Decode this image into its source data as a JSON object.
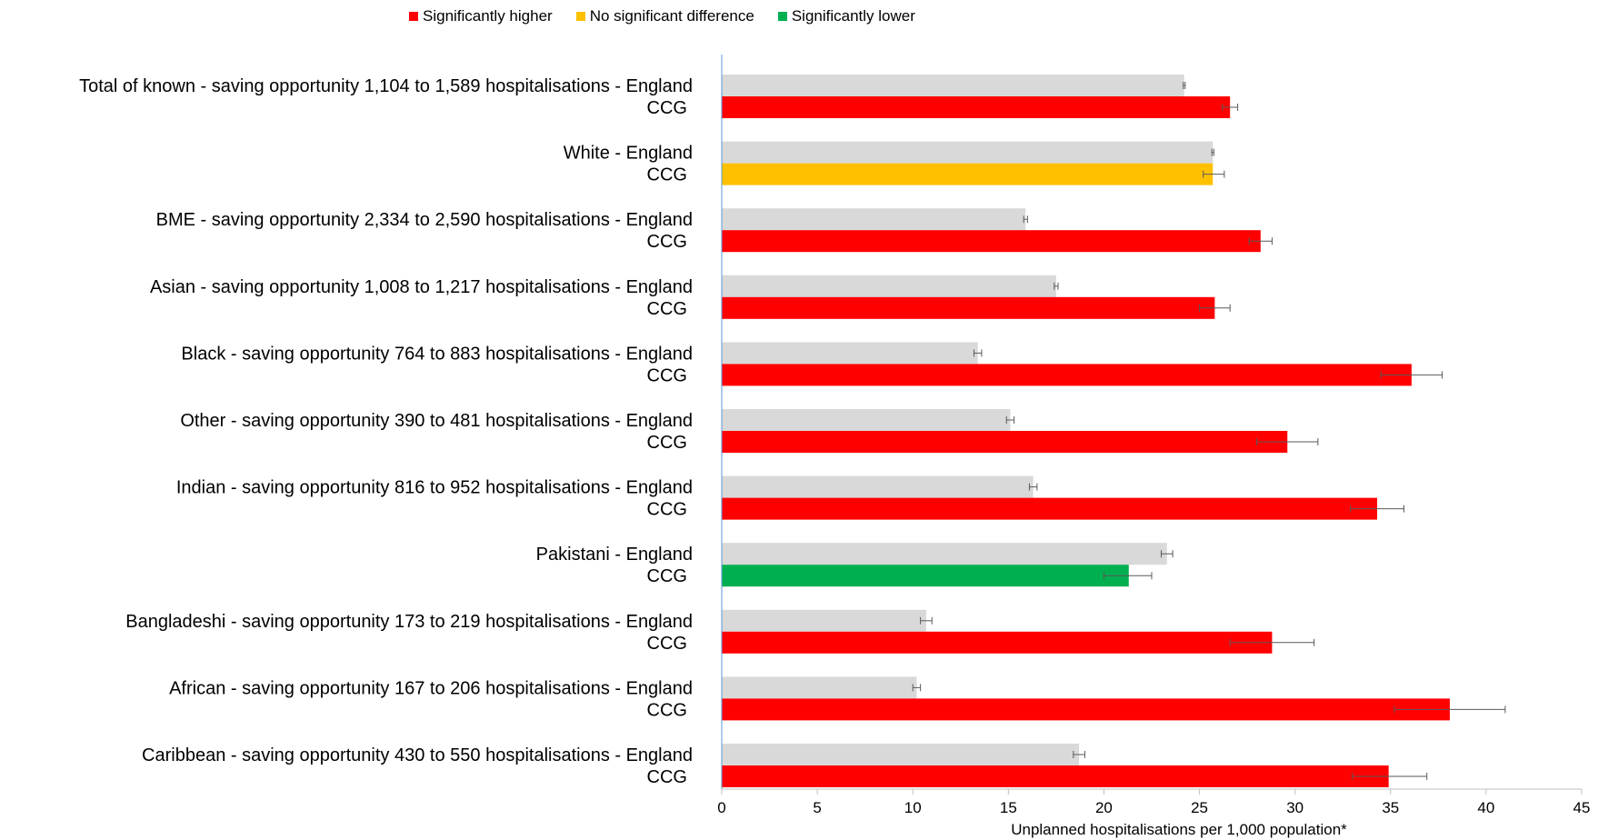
{
  "chart_data": {
    "type": "bar",
    "orientation": "horizontal",
    "xlabel": "Unplanned hospitalisations per 1,000 population*",
    "xlim": [
      0,
      45
    ],
    "xticks": [
      0,
      5,
      10,
      15,
      20,
      25,
      30,
      35,
      40,
      45
    ],
    "grid": false,
    "legend_position": "top",
    "legend": [
      {
        "label": "Significantly higher",
        "color": "#ff0000"
      },
      {
        "label": "No significant difference",
        "color": "#ffc000"
      },
      {
        "label": "Significantly lower",
        "color": "#00b050"
      }
    ],
    "england_color": "#d9d9d9",
    "groups": [
      {
        "label": "Total of known - saving opportunity 1,104 to 1,589 hospitalisations - England",
        "ccg_label": "CCG",
        "england": 24.2,
        "england_ci": [
          24.15,
          24.25
        ],
        "ccg": 26.6,
        "ccg_ci": [
          26.2,
          27.0
        ],
        "ccg_status": "Significantly higher"
      },
      {
        "label": "White - England",
        "ccg_label": "CCG",
        "england": 25.7,
        "england_ci": [
          25.65,
          25.75
        ],
        "ccg": 25.7,
        "ccg_ci": [
          25.2,
          26.3
        ],
        "ccg_status": "No significant difference"
      },
      {
        "label": "BME - saving opportunity 2,334 to 2,590 hospitalisations - England",
        "ccg_label": "CCG",
        "england": 15.9,
        "england_ci": [
          15.8,
          16.0
        ],
        "ccg": 28.2,
        "ccg_ci": [
          27.6,
          28.8
        ],
        "ccg_status": "Significantly higher"
      },
      {
        "label": "Asian - saving opportunity 1,008 to 1,217 hospitalisations - England",
        "ccg_label": "CCG",
        "england": 17.5,
        "england_ci": [
          17.4,
          17.6
        ],
        "ccg": 25.8,
        "ccg_ci": [
          25.0,
          26.6
        ],
        "ccg_status": "Significantly higher"
      },
      {
        "label": "Black - saving opportunity 764 to 883 hospitalisations - England",
        "ccg_label": "CCG",
        "england": 13.4,
        "england_ci": [
          13.2,
          13.6
        ],
        "ccg": 36.1,
        "ccg_ci": [
          34.5,
          37.7
        ],
        "ccg_status": "Significantly higher"
      },
      {
        "label": "Other - saving opportunity 390 to 481 hospitalisations - England",
        "ccg_label": "CCG",
        "england": 15.1,
        "england_ci": [
          14.9,
          15.3
        ],
        "ccg": 29.6,
        "ccg_ci": [
          28.0,
          31.2
        ],
        "ccg_status": "Significantly higher"
      },
      {
        "label": "Indian - saving opportunity 816 to 952 hospitalisations - England",
        "ccg_label": "CCG",
        "england": 16.3,
        "england_ci": [
          16.1,
          16.5
        ],
        "ccg": 34.3,
        "ccg_ci": [
          32.9,
          35.7
        ],
        "ccg_status": "Significantly higher"
      },
      {
        "label": "Pakistani - England",
        "ccg_label": "CCG",
        "england": 23.3,
        "england_ci": [
          23.0,
          23.6
        ],
        "ccg": 21.3,
        "ccg_ci": [
          20.0,
          22.5
        ],
        "ccg_status": "Significantly lower"
      },
      {
        "label": "Bangladeshi - saving opportunity 173 to 219 hospitalisations - England",
        "ccg_label": "CCG",
        "england": 10.7,
        "england_ci": [
          10.4,
          11.0
        ],
        "ccg": 28.8,
        "ccg_ci": [
          26.6,
          31.0
        ],
        "ccg_status": "Significantly higher"
      },
      {
        "label": "African - saving opportunity 167 to 206 hospitalisations - England",
        "ccg_label": "CCG",
        "england": 10.2,
        "england_ci": [
          10.0,
          10.4
        ],
        "ccg": 38.1,
        "ccg_ci": [
          35.2,
          41.0
        ],
        "ccg_status": "Significantly higher"
      },
      {
        "label": "Caribbean - saving opportunity 430 to 550 hospitalisations - England",
        "ccg_label": "CCG",
        "england": 18.7,
        "england_ci": [
          18.4,
          19.0
        ],
        "ccg": 34.9,
        "ccg_ci": [
          33.0,
          36.9
        ],
        "ccg_status": "Significantly higher"
      }
    ]
  }
}
